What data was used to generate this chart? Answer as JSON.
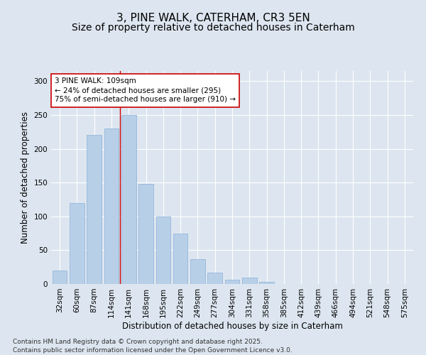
{
  "title1": "3, PINE WALK, CATERHAM, CR3 5EN",
  "title2": "Size of property relative to detached houses in Caterham",
  "xlabel": "Distribution of detached houses by size in Caterham",
  "ylabel": "Number of detached properties",
  "categories": [
    "32sqm",
    "60sqm",
    "87sqm",
    "114sqm",
    "141sqm",
    "168sqm",
    "195sqm",
    "222sqm",
    "249sqm",
    "277sqm",
    "304sqm",
    "331sqm",
    "358sqm",
    "385sqm",
    "412sqm",
    "439sqm",
    "466sqm",
    "494sqm",
    "521sqm",
    "548sqm",
    "575sqm"
  ],
  "values": [
    20,
    120,
    220,
    230,
    250,
    148,
    100,
    75,
    37,
    17,
    6,
    9,
    3,
    0,
    0,
    0,
    0,
    0,
    0,
    0,
    0
  ],
  "bar_color": "#b8cfe8",
  "bar_edge_color": "#8ab0d8",
  "background_color": "#dde6f0",
  "grid_color": "#ffffff",
  "vline_x_index": 3.5,
  "vline_color": "#cc0000",
  "annotation_text": "3 PINE WALK: 109sqm\n← 24% of detached houses are smaller (295)\n75% of semi-detached houses are larger (910) →",
  "annotation_box_facecolor": "#ffffff",
  "annotation_box_edgecolor": "#cc0000",
  "ylim": [
    0,
    315
  ],
  "yticks": [
    0,
    50,
    100,
    150,
    200,
    250,
    300
  ],
  "footer1": "Contains HM Land Registry data © Crown copyright and database right 2025.",
  "footer2": "Contains public sector information licensed under the Open Government Licence v3.0.",
  "title_fontsize": 11,
  "subtitle_fontsize": 10,
  "axis_label_fontsize": 8.5,
  "tick_fontsize": 7.5,
  "annotation_fontsize": 7.5,
  "footer_fontsize": 6.5
}
